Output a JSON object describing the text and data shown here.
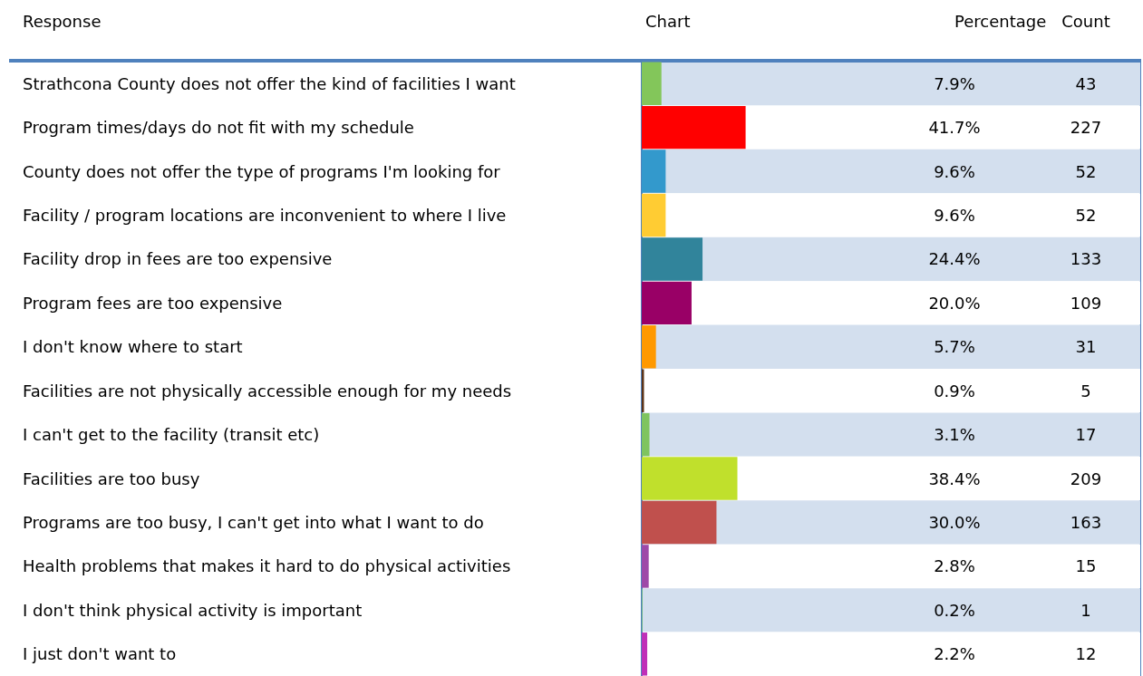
{
  "chart_data": {
    "type": "bar",
    "orientation": "horizontal",
    "ylabel": "Response",
    "xlabel": "Chart",
    "categories": [
      "Strathcona County does not offer the kind of facilities I want",
      "Program times/days do not fit with my schedule",
      "County does not offer the type of programs I'm looking for",
      "Facility / program locations are inconvenient to where I live",
      "Facility drop in fees are too expensive",
      "Program fees are too expensive",
      "I don't know where to start",
      "Facilities are not physically accessible enough for my needs",
      "I can't get to the facility (transit etc)",
      "Facilities are too busy",
      "Programs are too busy, I can't get into what I want to do",
      "Health problems that makes it hard to do physical activities",
      "I don't think physical activity is important",
      "I just don't want to"
    ],
    "series": [
      {
        "name": "Percentage",
        "values": [
          7.9,
          41.7,
          9.6,
          9.6,
          24.4,
          20.0,
          5.7,
          0.9,
          3.1,
          38.4,
          30.0,
          2.8,
          0.2,
          2.2
        ],
        "colors": [
          "#83c65a",
          "#ff0000",
          "#3399cc",
          "#ffcc33",
          "#31849b",
          "#990066",
          "#ff9900",
          "#5c3317",
          "#7fc45f",
          "#c0e02c",
          "#c0504d",
          "#9e4aa8",
          "#8ee65e",
          "#c030b8"
        ],
        "value_labels": [
          "7.9%",
          "41.7%",
          "9.6%",
          "9.6%",
          "24.4%",
          "20.0%",
          "5.7%",
          "0.9%",
          "3.1%",
          "38.4%",
          "30.0%",
          "2.8%",
          "0.2%",
          "2.2%"
        ]
      }
    ],
    "annotations": [
      "Count",
      "43",
      "227",
      "52",
      "52",
      "133",
      "109",
      "31",
      "5",
      "17",
      "209",
      "163",
      "15",
      "1",
      "12"
    ],
    "grid": false,
    "legend": false
  }
}
